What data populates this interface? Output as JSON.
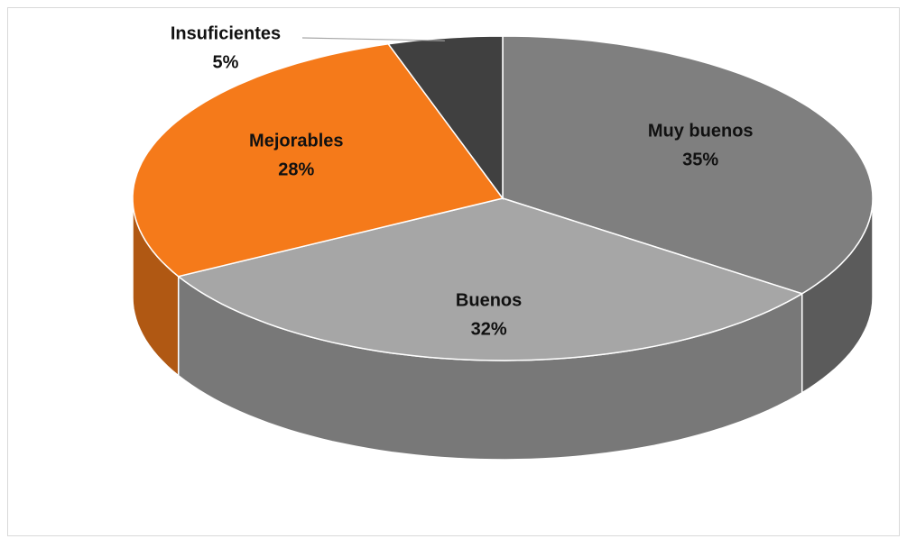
{
  "chart_data": {
    "type": "pie",
    "categories": [
      "Muy buenos",
      "Buenos",
      "Mejorables",
      "Insuficientes"
    ],
    "values": [
      35,
      32,
      28,
      5
    ],
    "value_labels": [
      "35%",
      "32%",
      "28%",
      "5%"
    ],
    "colors": [
      "#7f7f7f",
      "#a6a6a6",
      "#f57a1a",
      "#404040"
    ]
  }
}
